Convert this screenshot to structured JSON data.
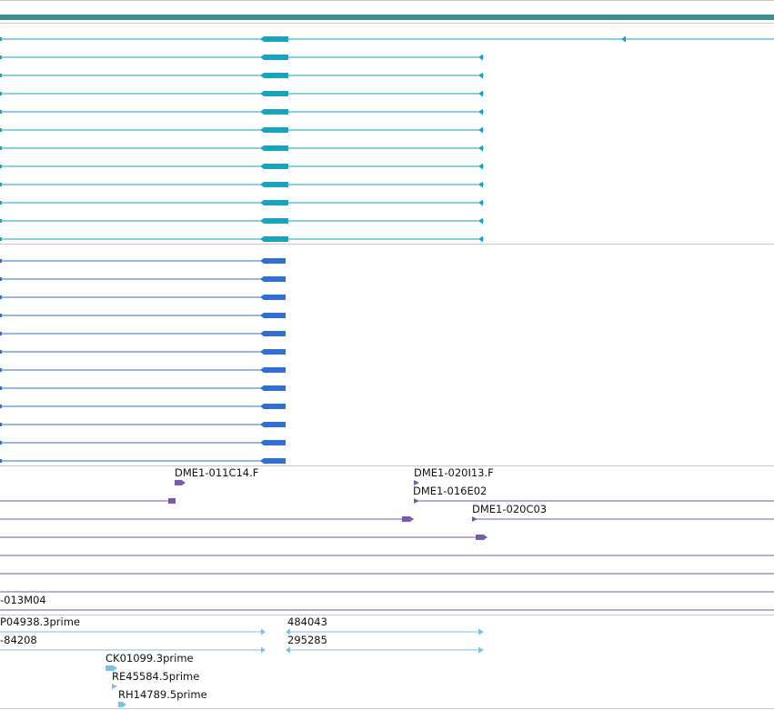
{
  "colors": {
    "header_bar": "#3b8f8f",
    "teal_transcripts": "#1aa3bf",
    "blue_transcripts": "#2f6fcf",
    "purple_features": "#7a5ba8",
    "light_blue_features": "#7fbfe0",
    "separator": "#c8c8c8"
  },
  "tracks": {
    "purple": {
      "labels": {
        "dme1_011c14_f": "DME1-011C14.F",
        "dme1_020i13_f": "DME1-020I13.F",
        "dme1_016e02": "DME1-016E02",
        "dme1_020c03": "DME1-020C03",
        "dme1_013m04": "-013M04"
      }
    },
    "light_blue": {
      "labels": {
        "p04938_3prime": "P04938.3prime",
        "n484043": "484043",
        "n84208": "-84208",
        "n295285": "295285",
        "ck01099_3prime": "CK01099.3prime",
        "re45584_5prime": "RE45584.5prime",
        "rh14789_5prime": "RH14789.5prime"
      }
    }
  }
}
